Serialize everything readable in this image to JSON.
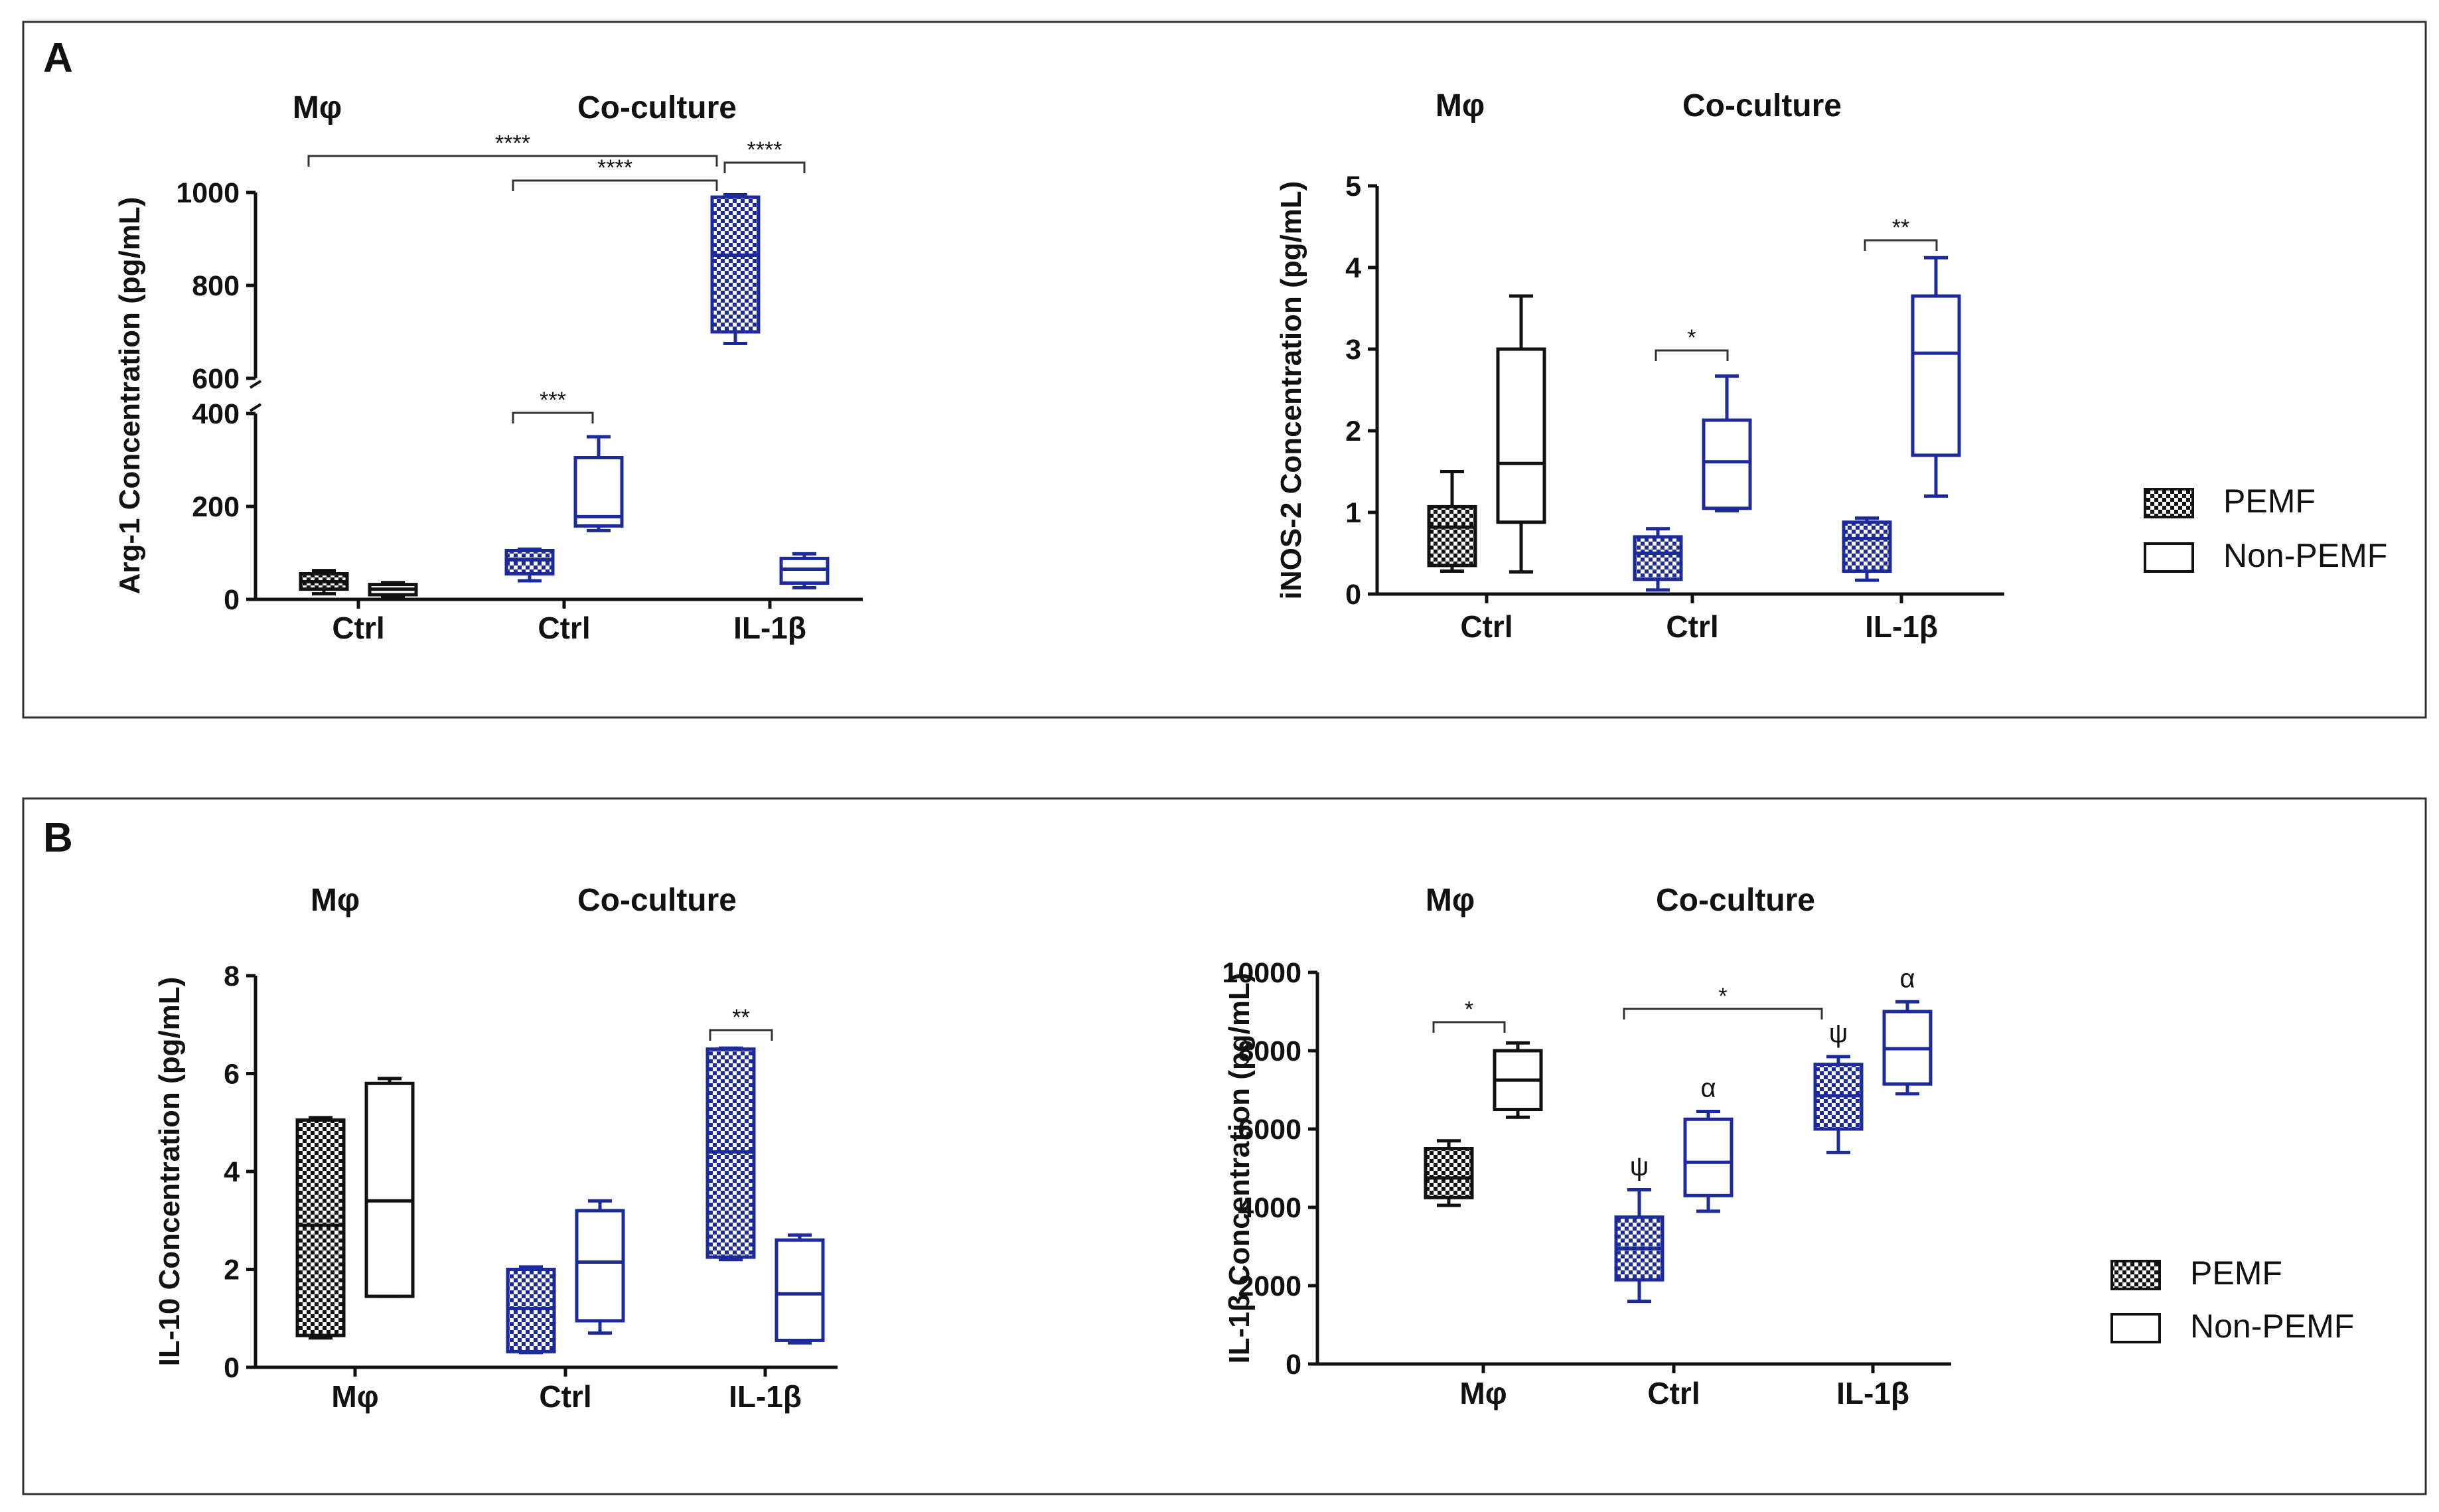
{
  "colors": {
    "black": "#111111",
    "blue": "#1c2a9c",
    "frame": "#333333"
  },
  "legend_labels": {
    "pemf": "PEMF",
    "non_pemf": "Non-PEMF"
  },
  "panels": [
    {
      "label": "A"
    },
    {
      "label": "B"
    }
  ],
  "chart_data": [
    {
      "type": "box",
      "panel": "A",
      "ylabel": "Arg-1 Concentration (pg/mL)",
      "group_headers": [
        "Mφ",
        "Co-culture"
      ],
      "categories": [
        "Ctrl",
        "Ctrl",
        "IL-1β"
      ],
      "axis_break": true,
      "ylim_lower": [
        0,
        400
      ],
      "ylim_upper": [
        600,
        1000
      ],
      "yticks": [
        0,
        200,
        400,
        600,
        800,
        1000
      ],
      "series": [
        {
          "name": "PEMF",
          "boxes": [
            {
              "min": 12,
              "q1": 22,
              "median": 38,
              "q3": 55,
              "max": 62
            },
            {
              "min": 40,
              "q1": 55,
              "median": 85,
              "q3": 105,
              "max": 108
            },
            {
              "min": 675,
              "q1": 700,
              "median": 865,
              "q3": 990,
              "max": 995
            }
          ]
        },
        {
          "name": "Non-PEMF",
          "boxes": [
            {
              "min": 5,
              "q1": 10,
              "median": 22,
              "q3": 32,
              "max": 36
            },
            {
              "min": 148,
              "q1": 158,
              "median": 178,
              "q3": 305,
              "max": 350
            },
            {
              "min": 25,
              "q1": 35,
              "median": 65,
              "q3": 88,
              "max": 98
            }
          ]
        }
      ],
      "significance": [
        {
          "label": "****"
        },
        {
          "label": "****"
        },
        {
          "label": "****"
        },
        {
          "label": "***"
        }
      ]
    },
    {
      "type": "box",
      "panel": "A",
      "ylabel": "iNOS-2 Concentration (pg/mL)",
      "group_headers": [
        "Mφ",
        "Co-culture"
      ],
      "categories": [
        "Ctrl",
        "Ctrl",
        "IL-1β"
      ],
      "ylim": [
        0,
        5
      ],
      "yticks": [
        0,
        1,
        2,
        3,
        4,
        5
      ],
      "series": [
        {
          "name": "PEMF",
          "boxes": [
            {
              "min": 0.28,
              "q1": 0.35,
              "median": 0.82,
              "q3": 1.07,
              "max": 1.5
            },
            {
              "min": 0.05,
              "q1": 0.18,
              "median": 0.5,
              "q3": 0.7,
              "max": 0.8
            },
            {
              "min": 0.17,
              "q1": 0.28,
              "median": 0.68,
              "q3": 0.88,
              "max": 0.93
            }
          ]
        },
        {
          "name": "Non-PEMF",
          "boxes": [
            {
              "min": 0.27,
              "q1": 0.88,
              "median": 1.6,
              "q3": 3.0,
              "max": 3.65
            },
            {
              "min": 1.02,
              "q1": 1.05,
              "median": 1.62,
              "q3": 2.13,
              "max": 2.67
            },
            {
              "min": 1.2,
              "q1": 1.7,
              "median": 2.95,
              "q3": 3.65,
              "max": 4.12
            }
          ]
        }
      ],
      "significance": [
        {
          "label": "*"
        },
        {
          "label": "**"
        }
      ]
    },
    {
      "type": "box",
      "panel": "B",
      "ylabel": "IL-10 Concentration (pg/mL)",
      "group_headers": [
        "Mφ",
        "Co-culture"
      ],
      "categories": [
        "Mφ",
        "Ctrl",
        "IL-1β"
      ],
      "ylim": [
        0,
        8
      ],
      "yticks": [
        0,
        2,
        4,
        6,
        8
      ],
      "series": [
        {
          "name": "PEMF",
          "boxes": [
            {
              "min": 0.6,
              "q1": 0.65,
              "median": 2.9,
              "q3": 5.05,
              "max": 5.1
            },
            {
              "min": 0.3,
              "q1": 0.32,
              "median": 1.2,
              "q3": 2.0,
              "max": 2.05
            },
            {
              "min": 2.2,
              "q1": 2.25,
              "median": 4.4,
              "q3": 6.5,
              "max": 6.52
            }
          ]
        },
        {
          "name": "Non-PEMF",
          "boxes": [
            {
              "min": 1.45,
              "q1": 1.45,
              "median": 3.4,
              "q3": 5.8,
              "max": 5.9
            },
            {
              "min": 0.7,
              "q1": 0.95,
              "median": 2.15,
              "q3": 3.2,
              "max": 3.4
            },
            {
              "min": 0.5,
              "q1": 0.55,
              "median": 1.5,
              "q3": 2.6,
              "max": 2.7
            }
          ]
        }
      ],
      "significance": [
        {
          "label": "**"
        }
      ]
    },
    {
      "type": "box",
      "panel": "B",
      "ylabel": "IL-1β Concentration (pg/mL)",
      "group_headers": [
        "Mφ",
        "Co-culture"
      ],
      "categories": [
        "Mφ",
        "Ctrl",
        "IL-1β"
      ],
      "ylim": [
        0,
        10000
      ],
      "yticks": [
        0,
        2000,
        4000,
        6000,
        8000,
        10000
      ],
      "series": [
        {
          "name": "PEMF",
          "boxes": [
            {
              "min": 4050,
              "q1": 4250,
              "median": 4750,
              "q3": 5500,
              "max": 5700
            },
            {
              "min": 1600,
              "q1": 2150,
              "median": 2950,
              "q3": 3750,
              "max": 4450,
              "mark": "ψ"
            },
            {
              "min": 5400,
              "q1": 6000,
              "median": 6850,
              "q3": 7650,
              "max": 7850,
              "mark": "ψ"
            }
          ]
        },
        {
          "name": "Non-PEMF",
          "boxes": [
            {
              "min": 6300,
              "q1": 6500,
              "median": 7250,
              "q3": 8000,
              "max": 8200
            },
            {
              "min": 3900,
              "q1": 4300,
              "median": 5150,
              "q3": 6250,
              "max": 6450,
              "mark": "α"
            },
            {
              "min": 6900,
              "q1": 7150,
              "median": 8050,
              "q3": 9000,
              "max": 9250,
              "mark": "α"
            }
          ]
        }
      ],
      "significance": [
        {
          "label": "*"
        },
        {
          "label": "*"
        }
      ]
    }
  ]
}
